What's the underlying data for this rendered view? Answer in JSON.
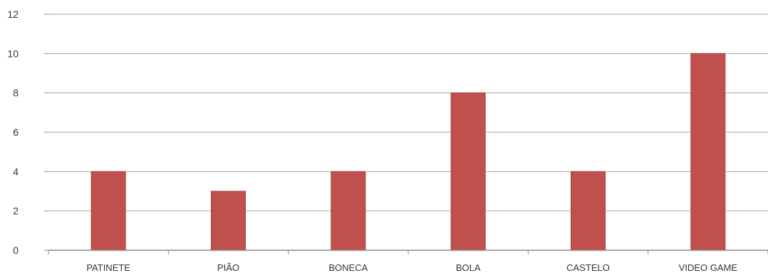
{
  "chart_data": {
    "type": "bar",
    "categories": [
      "PATINETE",
      "PIÃO",
      "BONECA",
      "BOLA",
      "CASTELO",
      "VIDEO GAME"
    ],
    "values": [
      4,
      3,
      4,
      8,
      4,
      10
    ],
    "ylim": [
      0,
      12
    ],
    "yticks": [
      "0",
      "2",
      "4",
      "6",
      "8",
      "10",
      "12"
    ],
    "grid": true,
    "legend": "none",
    "colors": {
      "bar": "#c0504d",
      "bar_edge": "#a33b38",
      "grid": "#a8a8a8",
      "axis": "#8c8c8c",
      "text": "#333333"
    }
  }
}
